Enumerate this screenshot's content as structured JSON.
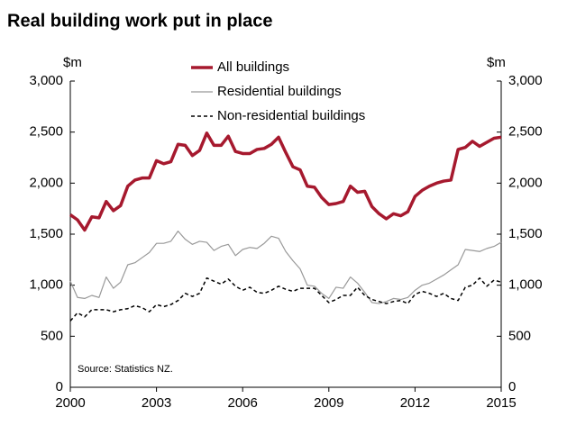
{
  "chart_data": {
    "type": "line",
    "title": "Real building work put in place",
    "ylabel": "$m",
    "y2label": "$m",
    "source": "Source: Statistics NZ.",
    "x": [
      2000,
      2000.25,
      2000.5,
      2000.75,
      2001,
      2001.25,
      2001.5,
      2001.75,
      2002,
      2002.25,
      2002.5,
      2002.75,
      2003,
      2003.25,
      2003.5,
      2003.75,
      2004,
      2004.25,
      2004.5,
      2004.75,
      2005,
      2005.25,
      2005.5,
      2005.75,
      2006,
      2006.25,
      2006.5,
      2006.75,
      2007,
      2007.25,
      2007.5,
      2007.75,
      2008,
      2008.25,
      2008.5,
      2008.75,
      2009,
      2009.25,
      2009.5,
      2009.75,
      2010,
      2010.25,
      2010.5,
      2010.75,
      2011,
      2011.25,
      2011.5,
      2011.75,
      2012,
      2012.25,
      2012.5,
      2012.75,
      2013,
      2013.25,
      2013.5,
      2013.75,
      2014,
      2014.25,
      2014.5,
      2014.75,
      2015
    ],
    "series": [
      {
        "name": "All buildings",
        "color": "#a6192e",
        "width": 3.5,
        "dash": "none",
        "values": [
          1690,
          1640,
          1540,
          1670,
          1660,
          1820,
          1730,
          1780,
          1970,
          2030,
          2050,
          2050,
          2220,
          2190,
          2210,
          2380,
          2370,
          2270,
          2320,
          2490,
          2370,
          2370,
          2460,
          2310,
          2290,
          2290,
          2330,
          2340,
          2380,
          2450,
          2300,
          2160,
          2130,
          1970,
          1960,
          1860,
          1790,
          1800,
          1820,
          1970,
          1910,
          1920,
          1770,
          1700,
          1650,
          1700,
          1680,
          1720,
          1870,
          1930,
          1970,
          2000,
          2020,
          2030,
          2330,
          2350,
          2410,
          2360,
          2400,
          2440,
          2450
        ]
      },
      {
        "name": "Residential buildings",
        "color": "#999999",
        "width": 1.2,
        "dash": "none",
        "values": [
          1040,
          880,
          870,
          900,
          880,
          1080,
          970,
          1030,
          1200,
          1220,
          1270,
          1320,
          1410,
          1410,
          1430,
          1530,
          1450,
          1400,
          1430,
          1420,
          1340,
          1380,
          1400,
          1290,
          1350,
          1370,
          1360,
          1410,
          1480,
          1460,
          1330,
          1240,
          1160,
          1000,
          990,
          920,
          870,
          980,
          970,
          1080,
          1020,
          930,
          830,
          820,
          840,
          870,
          860,
          880,
          950,
          1000,
          1020,
          1060,
          1100,
          1150,
          1200,
          1350,
          1340,
          1330,
          1360,
          1380,
          1420
        ]
      },
      {
        "name": "Non-residential buildings",
        "color": "#000000",
        "width": 1.5,
        "dash": "4 3",
        "values": [
          650,
          730,
          690,
          760,
          760,
          760,
          740,
          760,
          770,
          800,
          780,
          740,
          810,
          790,
          810,
          850,
          920,
          890,
          920,
          1070,
          1040,
          1010,
          1060,
          990,
          950,
          980,
          930,
          920,
          950,
          990,
          960,
          940,
          970,
          970,
          970,
          900,
          830,
          860,
          900,
          900,
          980,
          900,
          860,
          840,
          820,
          840,
          850,
          820,
          910,
          940,
          920,
          890,
          920,
          870,
          850,
          980,
          1000,
          1070,
          990,
          1050,
          1030
        ]
      }
    ],
    "xlim": [
      2000,
      2015
    ],
    "xticks": [
      2000,
      2003,
      2006,
      2009,
      2012,
      2015
    ],
    "ylim": [
      0,
      3000
    ],
    "yticks": [
      0,
      500,
      {
        "value": 1000,
        "label": "1,000"
      },
      {
        "value": 1500,
        "label": "1,500"
      },
      {
        "value": 2000,
        "label": "2,000"
      },
      {
        "value": 2500,
        "label": "2,500"
      },
      {
        "value": 3000,
        "label": "3,000"
      }
    ],
    "y2lim": [
      0,
      3000
    ],
    "y2ticks": [
      0,
      500,
      {
        "value": 1000,
        "label": "1,000"
      },
      {
        "value": 1500,
        "label": "1,500"
      },
      {
        "value": 2000,
        "label": "2,000"
      },
      {
        "value": 2500,
        "label": "2,500"
      },
      {
        "value": 3000,
        "label": "3,000"
      }
    ],
    "grid": false
  }
}
